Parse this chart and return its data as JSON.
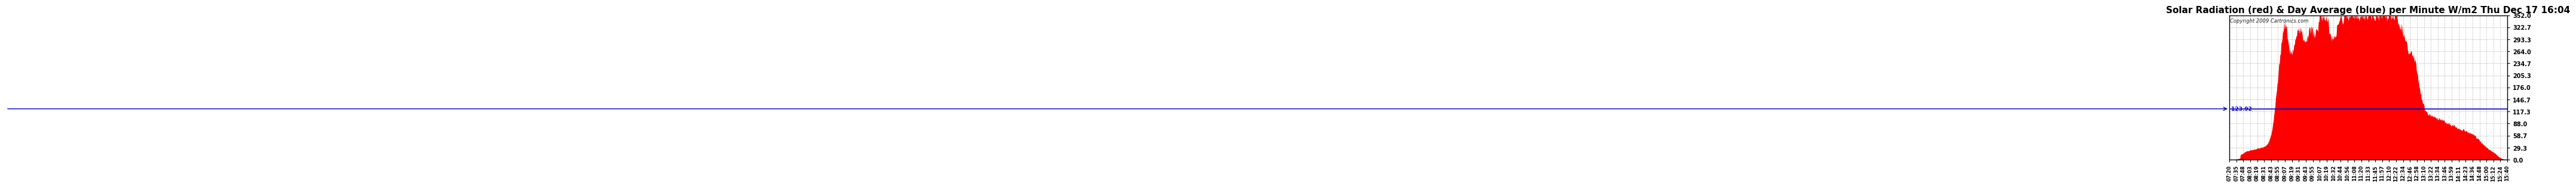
{
  "title": "Solar Radiation (red) & Day Average (blue) per Minute W/m2 Thu Dec 17 16:04",
  "copyright_text": "Copyright 2009 Cartronics.com",
  "avg_value": 123.92,
  "y_ticks": [
    0.0,
    29.3,
    58.7,
    88.0,
    117.3,
    146.7,
    176.0,
    205.3,
    234.7,
    264.0,
    293.3,
    322.7,
    352.0
  ],
  "y_max": 352.0,
  "y_min": 0.0,
  "x_tick_labels": [
    "07:20",
    "07:35",
    "07:48",
    "08:03",
    "08:19",
    "08:31",
    "08:43",
    "08:55",
    "09:07",
    "09:19",
    "09:31",
    "09:43",
    "09:55",
    "10:07",
    "10:19",
    "10:32",
    "10:44",
    "10:56",
    "11:08",
    "11:20",
    "11:33",
    "11:45",
    "11:57",
    "12:10",
    "12:22",
    "12:34",
    "12:46",
    "12:58",
    "13:10",
    "13:22",
    "13:34",
    "13:46",
    "13:59",
    "14:11",
    "14:23",
    "14:36",
    "14:48",
    "15:00",
    "15:12",
    "15:24",
    "15:40"
  ],
  "title_fontsize": 11,
  "bg_color": "#ffffff",
  "grid_color": "#bbbbbb",
  "bar_color": "#ff0000",
  "line_color": "#0000cc",
  "label_color": "#000000"
}
